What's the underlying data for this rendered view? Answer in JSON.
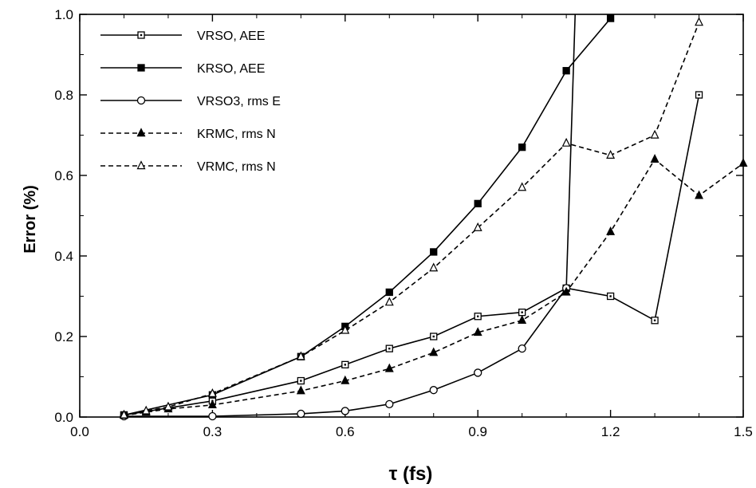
{
  "chart_data": {
    "type": "line",
    "xlabel": "τ (fs)",
    "ylabel": "Error  (%)",
    "xlim": [
      0.0,
      1.5
    ],
    "ylim": [
      0.0,
      1.0
    ],
    "xticks": [
      "0.0",
      "0.3",
      "0.6",
      "0.9",
      "1.2",
      "1.5"
    ],
    "yticks": [
      "0.0",
      "0.2",
      "0.4",
      "0.6",
      "0.8",
      "1.0"
    ],
    "legend_position": "top-left",
    "series": [
      {
        "name": "VRSO, AEE",
        "line": "solid",
        "marker": "open-square",
        "x": [
          0.1,
          0.3,
          0.5,
          0.6,
          0.7,
          0.8,
          0.9,
          1.0,
          1.1,
          1.2,
          1.3,
          1.4
        ],
        "y": [
          0.005,
          0.04,
          0.09,
          0.13,
          0.17,
          0.2,
          0.25,
          0.26,
          0.32,
          0.3,
          0.24,
          0.8
        ]
      },
      {
        "name": "KRSO, AEE",
        "line": "solid",
        "marker": "filled-square",
        "x": [
          0.1,
          0.3,
          0.5,
          0.6,
          0.7,
          0.8,
          0.9,
          1.0,
          1.1,
          1.2
        ],
        "y": [
          0.005,
          0.055,
          0.15,
          0.225,
          0.31,
          0.41,
          0.53,
          0.67,
          0.86,
          0.99
        ]
      },
      {
        "name": "VRSO3, rms E",
        "line": "solid",
        "marker": "open-circle",
        "x": [
          0.1,
          0.3,
          0.5,
          0.6,
          0.7,
          0.8,
          0.9,
          1.0,
          1.1,
          1.12
        ],
        "y": [
          0.002,
          0.002,
          0.008,
          0.015,
          0.032,
          0.067,
          0.11,
          0.17,
          0.32,
          1.0
        ]
      },
      {
        "name": "KRMC, rms N",
        "line": "dashed",
        "marker": "filled-triangle",
        "x": [
          0.1,
          0.15,
          0.2,
          0.3,
          0.5,
          0.6,
          0.7,
          0.8,
          0.9,
          1.0,
          1.1,
          1.2,
          1.3,
          1.4,
          1.5
        ],
        "y": [
          0.004,
          0.012,
          0.02,
          0.03,
          0.065,
          0.09,
          0.12,
          0.16,
          0.21,
          0.24,
          0.31,
          0.46,
          0.64,
          0.55,
          0.63
        ]
      },
      {
        "name": "VRMC, rms N",
        "line": "dashed",
        "marker": "open-triangle",
        "x": [
          0.1,
          0.15,
          0.2,
          0.3,
          0.5,
          0.6,
          0.7,
          0.8,
          0.9,
          1.0,
          1.1,
          1.2,
          1.3,
          1.4
        ],
        "y": [
          0.005,
          0.015,
          0.025,
          0.058,
          0.15,
          0.215,
          0.285,
          0.37,
          0.47,
          0.57,
          0.68,
          0.65,
          0.7,
          0.98
        ]
      }
    ]
  }
}
